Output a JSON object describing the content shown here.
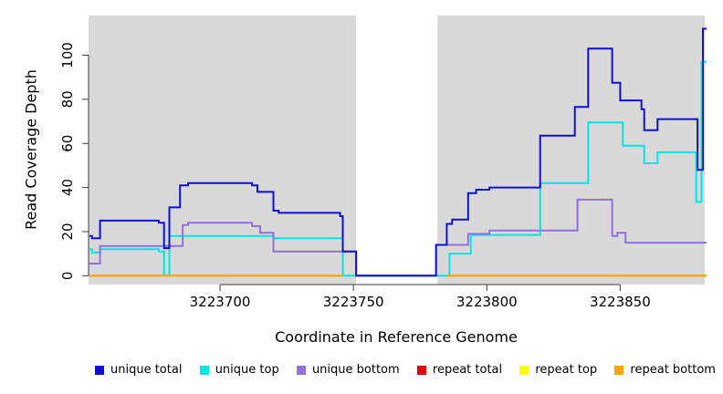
{
  "chart_data": {
    "type": "line",
    "subtype": "step",
    "title": "",
    "xlabel": "Coordinate in Reference Genome",
    "ylabel": "Read Coverage Depth",
    "xlim": [
      3223650.7,
      3223881.7
    ],
    "ylim": [
      -4,
      118
    ],
    "x_ticks": [
      3223700,
      3223750,
      3223800,
      3223850
    ],
    "y_ticks": [
      0,
      20,
      40,
      60,
      80,
      100
    ],
    "grid": false,
    "legend_position": "bottom",
    "plot_bg": "#d9d9d9",
    "axis_color": "#404040",
    "no_data_region": {
      "x_start": 3223751,
      "x_end": 3223781.5,
      "color": "#ffffff"
    },
    "series": [
      {
        "name": "unique total",
        "color": "#0f0fd8",
        "points": [
          [
            3223651,
            18
          ],
          [
            3223652,
            17
          ],
          [
            3223655,
            25
          ],
          [
            3223677,
            24
          ],
          [
            3223679,
            12.5
          ],
          [
            3223681,
            31
          ],
          [
            3223685,
            41
          ],
          [
            3223688,
            42
          ],
          [
            3223712,
            41
          ],
          [
            3223714,
            38
          ],
          [
            3223720,
            29.5
          ],
          [
            3223722,
            28.5
          ],
          [
            3223745,
            27
          ],
          [
            3223746,
            11
          ],
          [
            3223751,
            0
          ],
          [
            3223781,
            14
          ],
          [
            3223785,
            23.5
          ],
          [
            3223787,
            25.5
          ],
          [
            3223793,
            37.5
          ],
          [
            3223796,
            39
          ],
          [
            3223801,
            40
          ],
          [
            3223820,
            63.5
          ],
          [
            3223833,
            76.5
          ],
          [
            3223838,
            103
          ],
          [
            3223847,
            87.5
          ],
          [
            3223850,
            79.5
          ],
          [
            3223858,
            75.5
          ],
          [
            3223859,
            66
          ],
          [
            3223864,
            71
          ],
          [
            3223879,
            48
          ],
          [
            3223881,
            112
          ]
        ]
      },
      {
        "name": "unique top",
        "color": "#00e5e5",
        "points": [
          [
            3223651,
            12
          ],
          [
            3223652,
            10.5
          ],
          [
            3223655,
            12
          ],
          [
            3223677,
            11
          ],
          [
            3223679,
            0
          ],
          [
            3223681,
            18
          ],
          [
            3223720,
            17
          ],
          [
            3223746,
            0
          ],
          [
            3223786,
            10
          ],
          [
            3223794,
            18.5
          ],
          [
            3223820,
            42
          ],
          [
            3223838,
            69.5
          ],
          [
            3223851,
            59
          ],
          [
            3223859,
            51
          ],
          [
            3223864,
            56
          ],
          [
            3223878.5,
            33.5
          ],
          [
            3223880.5,
            97
          ]
        ]
      },
      {
        "name": "unique bottom",
        "color": "#9370db",
        "points": [
          [
            3223651,
            5.5
          ],
          [
            3223655,
            13.5
          ],
          [
            3223686,
            23
          ],
          [
            3223688,
            24
          ],
          [
            3223712,
            22.5
          ],
          [
            3223715,
            19.5
          ],
          [
            3223720,
            11
          ],
          [
            3223751,
            0
          ],
          [
            3223781,
            14
          ],
          [
            3223793,
            19
          ],
          [
            3223801,
            20.5
          ],
          [
            3223834,
            34.5
          ],
          [
            3223847,
            18
          ],
          [
            3223849,
            19.5
          ],
          [
            3223852,
            15
          ],
          [
            3223881,
            15
          ]
        ]
      },
      {
        "name": "repeat total",
        "color": "#e60000",
        "points": [
          [
            3223651,
            0
          ],
          [
            3223746,
            0
          ],
          [
            3223746,
            null
          ],
          [
            3223785,
            0
          ],
          [
            3223881,
            0
          ]
        ]
      },
      {
        "name": "repeat top",
        "color": "#ffff00",
        "points": [
          [
            3223651,
            0
          ],
          [
            3223746,
            0
          ],
          [
            3223746,
            null
          ],
          [
            3223785,
            0
          ],
          [
            3223881,
            0
          ]
        ]
      },
      {
        "name": "repeat bottom",
        "color": "#ffa500",
        "points": [
          [
            3223651,
            0
          ],
          [
            3223746,
            0
          ],
          [
            3223746,
            null
          ],
          [
            3223785,
            0
          ],
          [
            3223881,
            0
          ]
        ]
      }
    ]
  }
}
